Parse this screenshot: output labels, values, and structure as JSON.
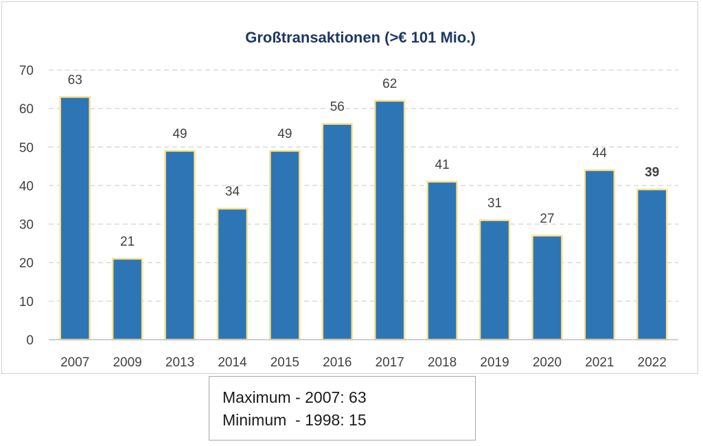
{
  "chart_data": {
    "type": "bar",
    "title": "Großtransaktionen (>€ 101 Mio.)",
    "categories": [
      "2007",
      "2009",
      "2013",
      "2014",
      "2015",
      "2016",
      "2017",
      "2018",
      "2019",
      "2020",
      "2021",
      "2022"
    ],
    "values": [
      63,
      21,
      49,
      34,
      49,
      56,
      62,
      41,
      31,
      27,
      44,
      39
    ],
    "bold_labels": [
      "2022"
    ],
    "ylim": [
      0,
      70
    ],
    "yticks": [
      0,
      10,
      20,
      30,
      40,
      50,
      60,
      70
    ],
    "xlabel": "",
    "ylabel": "",
    "grid": true,
    "colors": {
      "bar_fill": "#2e75b6",
      "bar_border": "#ffe38a",
      "grid": "#d9d9d9",
      "title": "#1f3864"
    }
  },
  "stats": {
    "max_line": "Maximum - 2007: 63",
    "min_line": "Minimum  - 1998: 15"
  }
}
